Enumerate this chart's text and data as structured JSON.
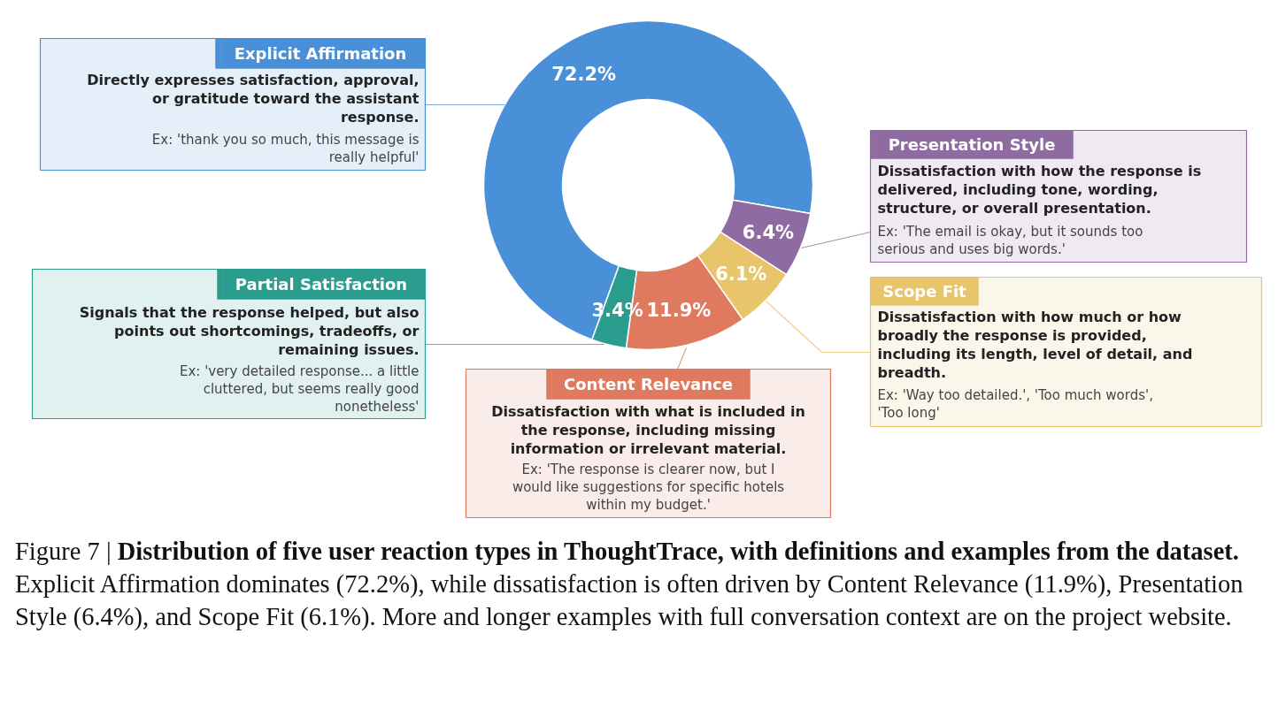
{
  "chart_data": {
    "type": "donut",
    "categories": [
      "Explicit Affirmation",
      "Presentation Style",
      "Scope Fit",
      "Content Relevance",
      "Partial Satisfaction"
    ],
    "values": [
      72.2,
      6.4,
      6.1,
      11.9,
      3.4
    ],
    "colors": [
      "#4a90d9",
      "#8e6ba0",
      "#e8c46a",
      "#e07a5f",
      "#2a9d8f"
    ],
    "legend": "right",
    "value_labels": [
      "72.2%",
      "6.4%",
      "6.1%",
      "11.9%",
      "3.4%"
    ],
    "annotations": [
      "Directly expresses satisfaction, approval,\nor gratitude toward the assistant\nresponse.",
      "Dissatisfaction with how the response is\ndelivered, including tone, wording,\nstructure, or overall presentation.",
      "Dissatisfaction with how much or how\nbroadly the response is provided,\nincluding its length, level of detail, and\nbreadth.",
      "Dissatisfaction with what is included in\nthe response, including missing\ninformation or irrelevant material.",
      "Signals that the response helped, but also\npoints out shortcomings, tradeoffs, or\nremaining issues.",
      "Ex: 'thank you so much, this message is\nreally helpful'",
      "Ex: 'The email is okay, but it sounds too\nserious and uses big words.'",
      "Ex: 'Way too detailed.', 'Too much words',\n'Too long'",
      "Ex: 'The response is clearer now, but I\nwould like suggestions for specific hotels\nwithin my budget.'",
      "Ex: 'very detailed response... a little\ncluttered, but seems really good\nnonetheless'",
      "Figure 7 |",
      "Distribution of five user reaction types in ThoughtTrace, with definitions and examples from the dataset.",
      "Explicit Affirmation dominates (72.2%), while dissatisfaction is often driven by Content Relevance (11.9%), Presentation Style (6.4%), and Scope Fit (6.1%). More and longer examples with full conversation context are on the project website."
    ]
  }
}
